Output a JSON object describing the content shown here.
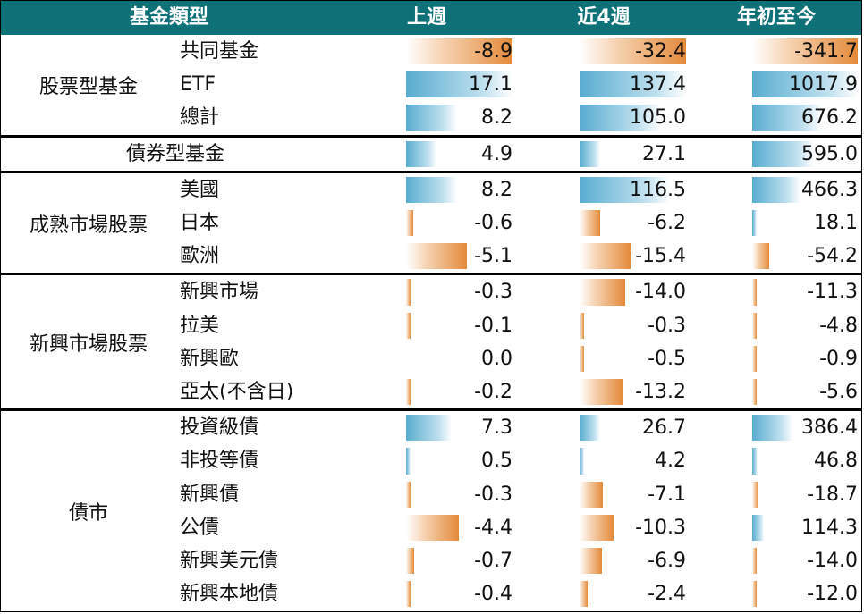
{
  "header": {
    "category": "基金類型",
    "col1": "上週",
    "col2": "近4週",
    "col3": "年初至今"
  },
  "colors": {
    "header_bg": "#0f7178",
    "positive_bar": "#58acd0",
    "negative_bar": "#e48a3a"
  },
  "groups": [
    {
      "name": "股票型基金",
      "rows": [
        {
          "label": "共同基金",
          "v1": "-8.9",
          "v2": "-32.4",
          "v3": "-341.7"
        },
        {
          "label": "ETF",
          "v1": "17.1",
          "v2": "137.4",
          "v3": "1017.9"
        },
        {
          "label": "總計",
          "v1": "8.2",
          "v2": "105.0",
          "v3": "676.2"
        }
      ]
    },
    {
      "name": "",
      "rows": [
        {
          "label": "債券型基金",
          "v1": "4.9",
          "v2": "27.1",
          "v3": "595.0"
        }
      ]
    },
    {
      "name": "成熟市場股票",
      "rows": [
        {
          "label": "美國",
          "v1": "8.2",
          "v2": "116.5",
          "v3": "466.3"
        },
        {
          "label": "日本",
          "v1": "-0.6",
          "v2": "-6.2",
          "v3": "18.1"
        },
        {
          "label": "歐洲",
          "v1": "-5.1",
          "v2": "-15.4",
          "v3": "-54.2"
        }
      ]
    },
    {
      "name": "新興市場股票",
      "rows": [
        {
          "label": "新興市場",
          "v1": "-0.3",
          "v2": "-14.0",
          "v3": "-11.3"
        },
        {
          "label": "拉美",
          "v1": "-0.1",
          "v2": "-0.3",
          "v3": "-4.8"
        },
        {
          "label": "新興歐",
          "v1": "0.0",
          "v2": "-0.5",
          "v3": "-0.9"
        },
        {
          "label": "亞太(不含日)",
          "v1": "-0.2",
          "v2": "-13.2",
          "v3": "-5.6"
        }
      ]
    },
    {
      "name": "債市",
      "rows": [
        {
          "label": "投資級債",
          "v1": "7.3",
          "v2": "26.7",
          "v3": "386.4"
        },
        {
          "label": "非投等債",
          "v1": "0.5",
          "v2": "4.2",
          "v3": "46.8"
        },
        {
          "label": "新興債",
          "v1": "-0.3",
          "v2": "-7.1",
          "v3": "-18.7"
        },
        {
          "label": "公債",
          "v1": "-4.4",
          "v2": "-10.3",
          "v3": "114.3"
        },
        {
          "label": "新興美元債",
          "v1": "-0.7",
          "v2": "-6.9",
          "v3": "-14.0"
        },
        {
          "label": "新興本地債",
          "v1": "-0.4",
          "v2": "-2.4",
          "v3": "-12.0"
        }
      ]
    }
  ]
}
